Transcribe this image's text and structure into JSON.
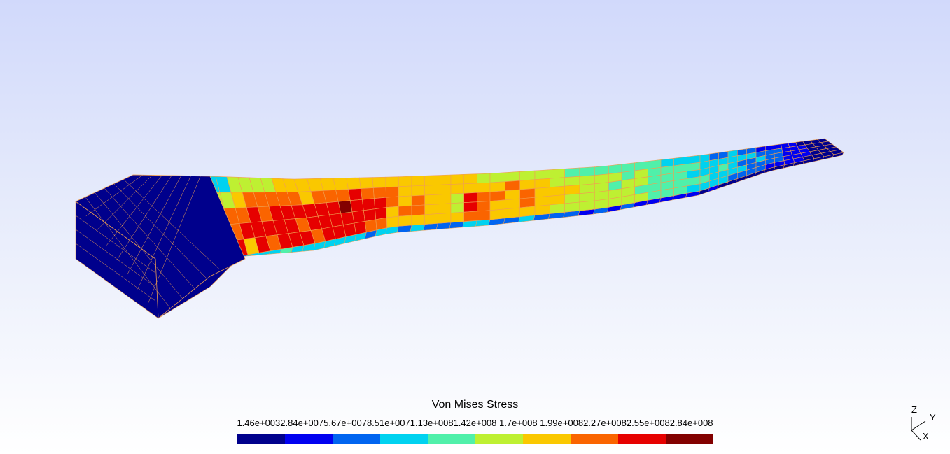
{
  "legend": {
    "title": "Von Mises Stress",
    "ticks": [
      "1.46e+003",
      "2.84e+007",
      "5.67e+007",
      "8.51e+007",
      "1.13e+008",
      "1.42e+008",
      "1.7e+008",
      "1.99e+008",
      "2.27e+008",
      "2.55e+008",
      "2.84e+008"
    ],
    "colors": [
      "#00008c",
      "#0000f0",
      "#0064f0",
      "#00d2f0",
      "#50f0aa",
      "#bef032",
      "#fac800",
      "#fa6400",
      "#e60000",
      "#820000"
    ]
  },
  "mesh": {
    "edge_color": "#f0a050",
    "stress_rows": [
      [
        0,
        0,
        0,
        0,
        0,
        3,
        3,
        3,
        3,
        5,
        5,
        5,
        5,
        6,
        6,
        6,
        6,
        6,
        6,
        6,
        6,
        6,
        6,
        6,
        6,
        6,
        6,
        6,
        6,
        5,
        5,
        5,
        5,
        5,
        5,
        4,
        4,
        4,
        4,
        4,
        4,
        4,
        3,
        3,
        3,
        3,
        2,
        2,
        3,
        2,
        2,
        1,
        1,
        1,
        1,
        1,
        0,
        0,
        0,
        0
      ],
      [
        0,
        0,
        0,
        0,
        0,
        3,
        4,
        5,
        5,
        6,
        7,
        7,
        7,
        7,
        7,
        6,
        7,
        7,
        7,
        8,
        7,
        7,
        7,
        6,
        6,
        6,
        6,
        6,
        6,
        6,
        6,
        7,
        6,
        6,
        5,
        5,
        5,
        5,
        5,
        4,
        5,
        4,
        4,
        4,
        4,
        3,
        3,
        3,
        3,
        3,
        3,
        2,
        2,
        2,
        1,
        1,
        1,
        0,
        0,
        0
      ],
      [
        0,
        0,
        0,
        0,
        0,
        4,
        5,
        6,
        7,
        7,
        8,
        7,
        8,
        8,
        8,
        8,
        8,
        8,
        9,
        8,
        8,
        8,
        7,
        6,
        7,
        6,
        6,
        5,
        8,
        7,
        7,
        6,
        7,
        6,
        6,
        6,
        5,
        5,
        4,
        5,
        5,
        4,
        4,
        4,
        3,
        3,
        3,
        4,
        3,
        2,
        2,
        3,
        2,
        2,
        1,
        1,
        1,
        0,
        0,
        0
      ],
      [
        0,
        0,
        0,
        0,
        0,
        5,
        5,
        6,
        7,
        8,
        8,
        8,
        8,
        8,
        7,
        8,
        8,
        8,
        8,
        8,
        8,
        8,
        6,
        7,
        7,
        6,
        6,
        5,
        8,
        7,
        6,
        6,
        7,
        6,
        6,
        5,
        5,
        5,
        5,
        5,
        4,
        4,
        4,
        4,
        4,
        4,
        3,
        3,
        3,
        3,
        2,
        2,
        2,
        2,
        1,
        1,
        1,
        0,
        0,
        0
      ],
      [
        0,
        0,
        0,
        0,
        0,
        5,
        5,
        6,
        8,
        6,
        8,
        7,
        8,
        8,
        8,
        7,
        8,
        8,
        8,
        8,
        7,
        7,
        6,
        6,
        6,
        6,
        6,
        6,
        7,
        7,
        6,
        6,
        6,
        6,
        5,
        5,
        5,
        5,
        5,
        5,
        5,
        4,
        4,
        4,
        3,
        3,
        3,
        3,
        2,
        2,
        2,
        2,
        1,
        1,
        1,
        1,
        0,
        0,
        0,
        0
      ]
    ],
    "side_band": [
      0,
      0,
      0,
      0,
      0,
      3,
      2,
      3,
      2,
      3,
      3,
      3,
      4,
      3,
      3,
      3,
      3,
      3,
      3,
      3,
      2,
      3,
      3,
      2,
      3,
      2,
      2,
      2,
      3,
      3,
      2,
      2,
      3,
      2,
      2,
      2,
      1,
      2,
      1,
      2,
      1,
      1,
      1,
      1,
      1,
      0,
      1,
      0,
      0,
      0,
      0,
      0,
      0,
      0,
      0,
      0,
      0,
      0,
      0,
      0
    ]
  },
  "triad": {
    "z": "Z",
    "y": "Y",
    "x": "X"
  }
}
